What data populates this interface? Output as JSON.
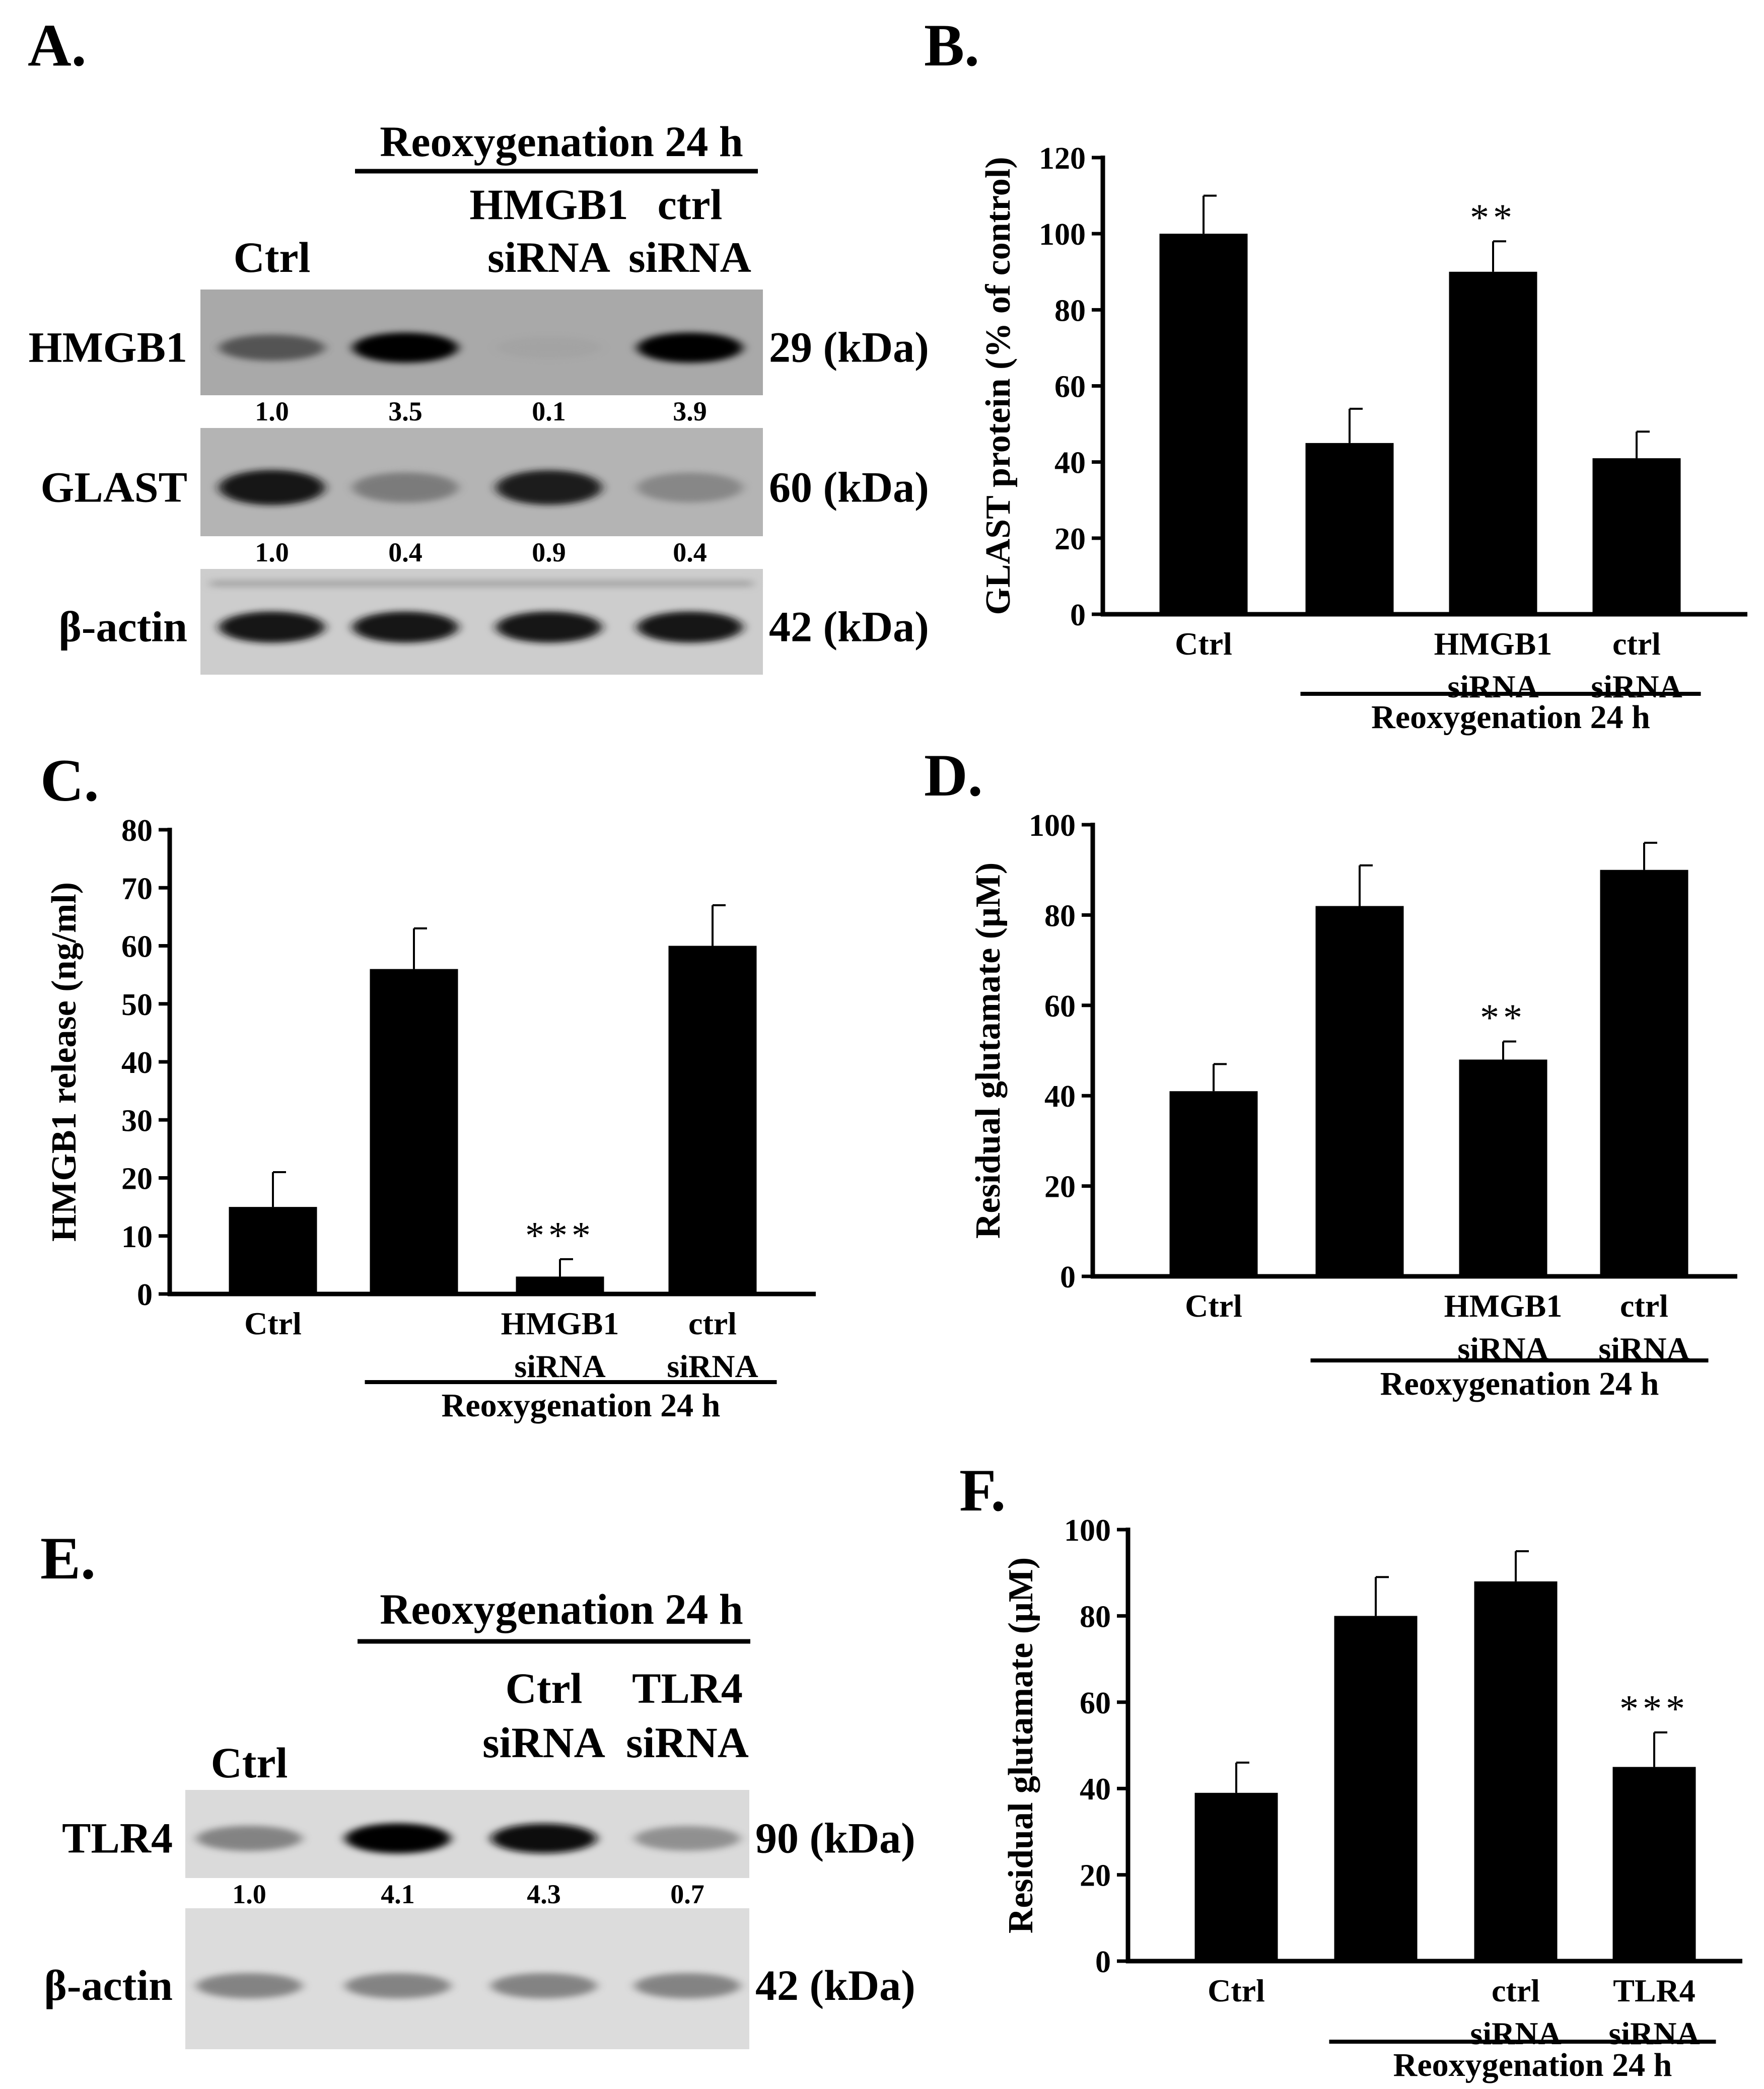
{
  "figure": {
    "panels": {
      "A": {
        "letter": "A.",
        "group_label": "Reoxygenation  24 h",
        "lanes": [
          {
            "lines": [
              "Ctrl"
            ]
          },
          {
            "lines": []
          },
          {
            "lines": [
              "HMGB1",
              "siRNA"
            ]
          },
          {
            "lines": [
              "ctrl",
              "siRNA"
            ]
          }
        ],
        "blots": [
          {
            "protein": "HMGB1",
            "mw": "29 (kDa)",
            "intensities": [
              0.55,
              1.0,
              0.08,
              1.0
            ],
            "quant": [
              "1.0",
              "3.5",
              "0.1",
              "3.9"
            ]
          },
          {
            "protein": "GLAST",
            "mw": "60 (kDa)",
            "intensities": [
              0.9,
              0.45,
              0.85,
              0.4
            ],
            "quant": [
              "1.0",
              "0.4",
              "0.9",
              "0.4"
            ]
          },
          {
            "protein": "β-actin",
            "mw": "42 (kDa)",
            "intensities": [
              0.9,
              0.9,
              0.9,
              0.9
            ],
            "quant": []
          }
        ]
      },
      "E": {
        "letter": "E.",
        "group_label": "Reoxygenation 24 h",
        "lanes": [
          {
            "lines": [
              "Ctrl"
            ]
          },
          {
            "lines": []
          },
          {
            "lines": [
              "Ctrl",
              "siRNA"
            ]
          },
          {
            "lines": [
              "TLR4",
              "siRNA"
            ]
          }
        ],
        "blots": [
          {
            "protein": "TLR4",
            "mw": "90 (kDa)",
            "intensities": [
              0.45,
              1.0,
              0.95,
              0.4
            ],
            "quant": [
              "1.0",
              "4.1",
              "4.3",
              "0.7"
            ]
          },
          {
            "protein": "β-actin",
            "mw": "42 (kDa)",
            "intensities": [
              0.45,
              0.45,
              0.45,
              0.45
            ],
            "quant": []
          }
        ]
      }
    }
  },
  "chart_data": [
    {
      "panel": "B.",
      "type": "bar",
      "ylabel": "GLAST protein (% of control)",
      "ylim": [
        0,
        120
      ],
      "yticks": [
        0,
        20,
        40,
        60,
        80,
        100,
        120
      ],
      "categories": [
        [
          "Ctrl"
        ],
        [],
        [
          "HMGB1",
          "siRNA"
        ],
        [
          "ctrl",
          "siRNA"
        ]
      ],
      "values": [
        100,
        45,
        90,
        41
      ],
      "errors": [
        10,
        9,
        8,
        7
      ],
      "significance": [
        "",
        "",
        "**",
        ""
      ],
      "group_label": "Reoxygenation 24 h",
      "group_span": [
        1,
        3
      ]
    },
    {
      "panel": "C.",
      "type": "bar",
      "ylabel": "HMGB1 release (ng/ml)",
      "ylim": [
        0,
        80
      ],
      "yticks": [
        0,
        10,
        20,
        30,
        40,
        50,
        60,
        70,
        80
      ],
      "categories": [
        [
          "Ctrl"
        ],
        [],
        [
          "HMGB1",
          "siRNA"
        ],
        [
          "ctrl",
          "siRNA"
        ]
      ],
      "values": [
        15,
        56,
        3,
        60
      ],
      "errors": [
        6,
        7,
        3,
        7
      ],
      "significance": [
        "",
        "",
        "***",
        ""
      ],
      "group_label": "Reoxygenation 24 h",
      "group_span": [
        1,
        3
      ]
    },
    {
      "panel": "D.",
      "type": "bar",
      "ylabel": "Residual glutamate (μM)",
      "ylim": [
        0,
        100
      ],
      "yticks": [
        0,
        20,
        40,
        60,
        80,
        100
      ],
      "categories": [
        [
          "Ctrl"
        ],
        [],
        [
          "HMGB1",
          "siRNA"
        ],
        [
          "ctrl",
          "siRNA"
        ]
      ],
      "values": [
        41,
        82,
        48,
        90
      ],
      "errors": [
        6,
        9,
        4,
        6
      ],
      "significance": [
        "",
        "",
        "**",
        ""
      ],
      "group_label": "Reoxygenation  24 h",
      "group_span": [
        1,
        3
      ]
    },
    {
      "panel": "F.",
      "type": "bar",
      "ylabel": "Residual glutamate (μM)",
      "ylim": [
        0,
        100
      ],
      "yticks": [
        0,
        20,
        40,
        60,
        80,
        100
      ],
      "categories": [
        [
          "Ctrl"
        ],
        [],
        [
          "ctrl",
          "siRNA"
        ],
        [
          "TLR4",
          "siRNA"
        ]
      ],
      "values": [
        39,
        80,
        88,
        45
      ],
      "errors": [
        7,
        9,
        7,
        8
      ],
      "significance": [
        "",
        "",
        "",
        "***"
      ],
      "group_label": "Reoxygenation  24 h",
      "group_span": [
        1,
        3
      ]
    }
  ]
}
